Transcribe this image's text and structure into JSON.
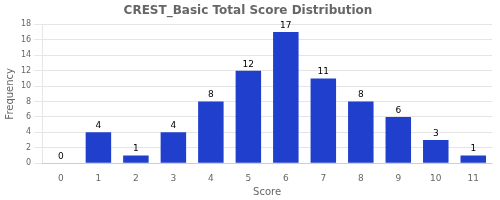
{
  "chart_data": {
    "type": "bar",
    "title": "CREST_Basic Total Score Distribution",
    "xlabel": "Score",
    "ylabel": "Frequency",
    "categories": [
      0,
      1,
      2,
      3,
      4,
      5,
      6,
      7,
      8,
      9,
      10,
      11
    ],
    "values": [
      0,
      4,
      1,
      4,
      8,
      12,
      17,
      11,
      8,
      6,
      3,
      1
    ],
    "color": "#1f3fcc",
    "ylim": [
      0,
      18
    ],
    "yticks": [
      0,
      2,
      4,
      6,
      8,
      10,
      12,
      14,
      16,
      18
    ],
    "grid": true,
    "data_labels": true
  }
}
